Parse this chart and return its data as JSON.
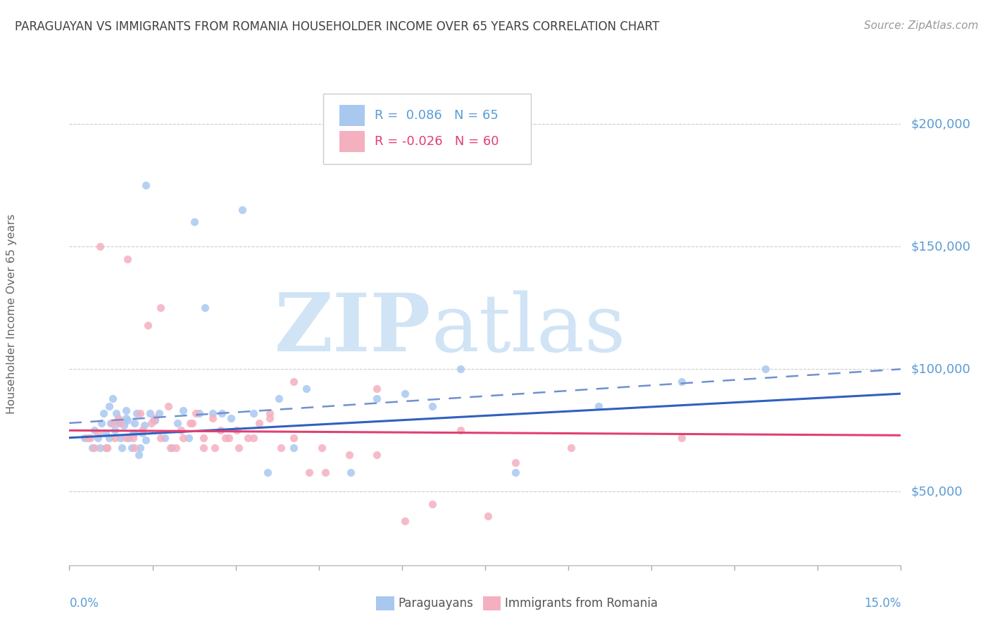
{
  "title": "PARAGUAYAN VS IMMIGRANTS FROM ROMANIA HOUSEHOLDER INCOME OVER 65 YEARS CORRELATION CHART",
  "source": "Source: ZipAtlas.com",
  "ylabel": "Householder Income Over 65 years",
  "xlim": [
    0.0,
    15.0
  ],
  "ylim": [
    20000,
    225000
  ],
  "yticks": [
    50000,
    100000,
    150000,
    200000
  ],
  "ytick_labels": [
    "$50,000",
    "$100,000",
    "$150,000",
    "$200,000"
  ],
  "legend_blue_r": "R =  0.086",
  "legend_blue_n": "N = 65",
  "legend_pink_r": "R = -0.026",
  "legend_pink_n": "N = 60",
  "blue_scatter_color": "#a8c8f0",
  "pink_scatter_color": "#f5b0c0",
  "blue_line_color": "#3060c0",
  "pink_line_color": "#e04070",
  "blue_dash_color": "#7090d0",
  "axis_label_color": "#5b9bd5",
  "title_color": "#404040",
  "source_color": "#999999",
  "grid_color": "#cccccc",
  "legend_r_blue_color": "#5b9bd5",
  "legend_r_pink_color": "#e04070",
  "bottom_legend_color": "#555555",
  "watermark_color": "#d0e4f5",
  "blue_trend_y0": 72000,
  "blue_trend_y1": 90000,
  "pink_trend_y0": 75000,
  "pink_trend_y1": 73000,
  "blue_dash_y0": 78000,
  "blue_dash_y1": 100000,
  "blue_scatter_x": [
    0.28,
    0.42,
    0.52,
    0.58,
    0.62,
    0.65,
    0.68,
    0.72,
    0.75,
    0.78,
    0.82,
    0.85,
    0.88,
    0.92,
    0.95,
    0.98,
    1.02,
    1.05,
    1.08,
    1.12,
    1.15,
    1.18,
    1.22,
    1.25,
    1.28,
    1.32,
    1.35,
    1.38,
    1.45,
    1.52,
    1.62,
    1.72,
    1.85,
    1.95,
    2.05,
    2.15,
    2.25,
    2.35,
    2.45,
    2.58,
    2.75,
    2.92,
    3.12,
    3.32,
    3.58,
    3.78,
    4.05,
    4.28,
    5.08,
    5.55,
    6.05,
    6.55,
    7.05,
    8.05,
    9.55,
    11.05,
    12.55,
    0.45,
    0.55,
    0.72,
    0.88,
    1.02,
    1.18,
    1.38,
    1.55
  ],
  "blue_scatter_y": [
    72000,
    68000,
    72000,
    78000,
    82000,
    74000,
    68000,
    85000,
    78000,
    88000,
    75000,
    82000,
    79000,
    72000,
    68000,
    77000,
    83000,
    79000,
    72000,
    68000,
    74000,
    78000,
    82000,
    65000,
    68000,
    74000,
    77000,
    175000,
    82000,
    79000,
    82000,
    72000,
    68000,
    78000,
    83000,
    72000,
    160000,
    82000,
    125000,
    82000,
    82000,
    80000,
    165000,
    82000,
    58000,
    88000,
    68000,
    92000,
    58000,
    88000,
    90000,
    85000,
    100000,
    58000,
    85000,
    95000,
    100000,
    75000,
    68000,
    72000,
    78000,
    80000,
    74000,
    71000,
    79000
  ],
  "pink_scatter_x": [
    0.32,
    0.45,
    0.55,
    0.68,
    0.82,
    0.92,
    1.05,
    1.15,
    1.28,
    1.42,
    1.55,
    1.65,
    1.78,
    1.92,
    2.05,
    2.18,
    2.28,
    2.42,
    2.58,
    2.72,
    2.88,
    3.05,
    3.22,
    3.42,
    3.62,
    3.82,
    4.05,
    4.32,
    4.62,
    5.05,
    5.55,
    6.05,
    7.05,
    8.05,
    9.05,
    11.05,
    0.38,
    0.52,
    0.65,
    0.78,
    0.88,
    1.02,
    1.18,
    1.32,
    1.48,
    1.65,
    1.82,
    2.02,
    2.22,
    2.42,
    2.62,
    2.82,
    3.02,
    3.32,
    3.62,
    4.05,
    4.55,
    5.55,
    6.55,
    7.55
  ],
  "pink_scatter_y": [
    72000,
    68000,
    150000,
    68000,
    72000,
    78000,
    145000,
    72000,
    82000,
    118000,
    80000,
    125000,
    85000,
    68000,
    72000,
    78000,
    82000,
    68000,
    80000,
    75000,
    72000,
    68000,
    72000,
    78000,
    82000,
    68000,
    95000,
    58000,
    58000,
    65000,
    92000,
    38000,
    75000,
    62000,
    68000,
    72000,
    72000,
    74000,
    68000,
    78000,
    80000,
    72000,
    68000,
    75000,
    78000,
    72000,
    68000,
    75000,
    78000,
    72000,
    68000,
    72000,
    75000,
    72000,
    80000,
    72000,
    68000,
    65000,
    45000,
    40000
  ]
}
